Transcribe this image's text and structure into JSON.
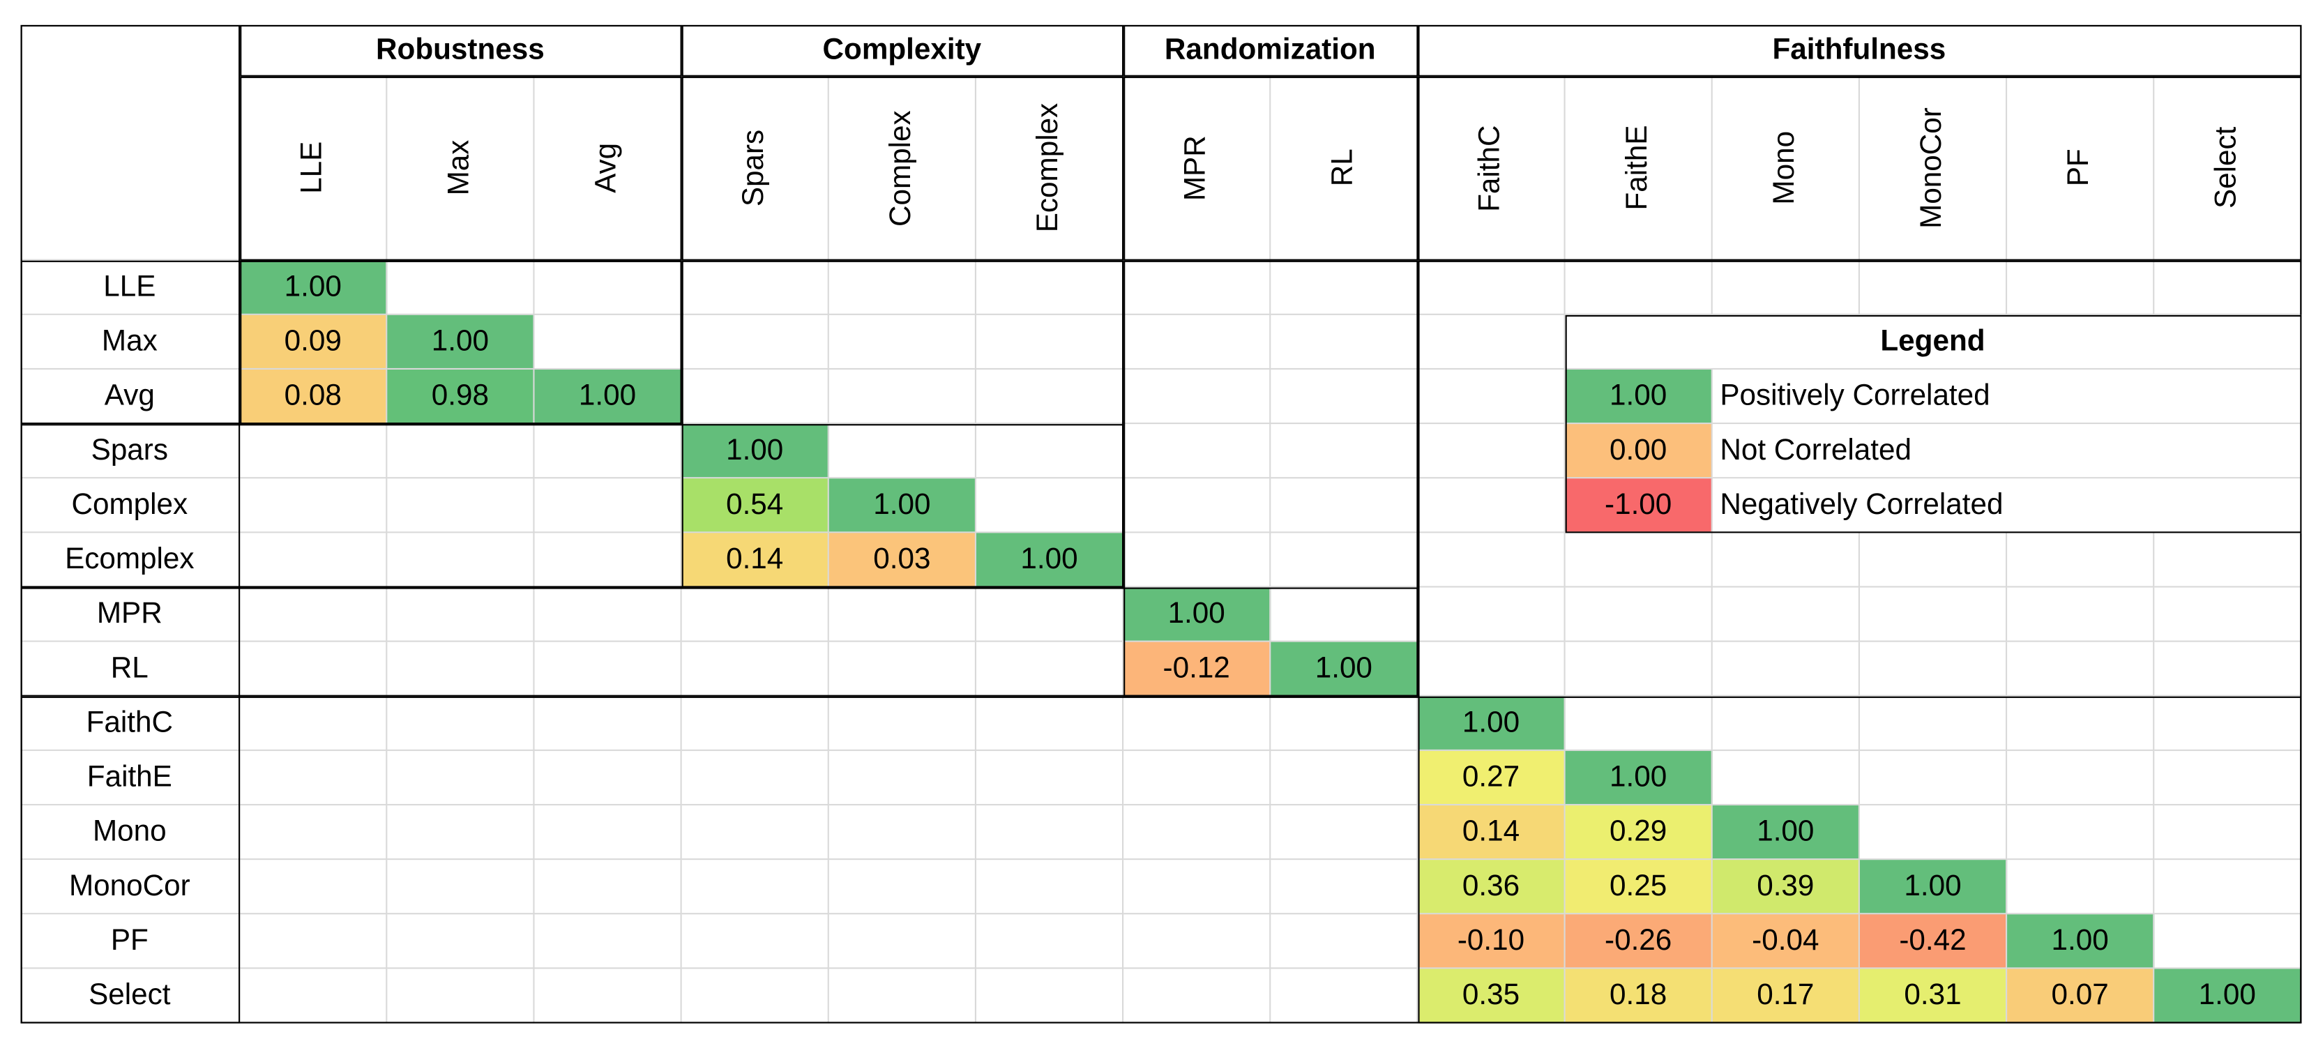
{
  "table": {
    "groups": [
      {
        "name": "Robustness",
        "columns": [
          "LLE",
          "Max",
          "Avg"
        ],
        "rows": [
          [
            "1.00"
          ],
          [
            "0.09",
            "1.00"
          ],
          [
            "0.08",
            "0.98",
            "1.00"
          ]
        ]
      },
      {
        "name": "Complexity",
        "columns": [
          "Spars",
          "Complex",
          "Ecomplex"
        ],
        "rows": [
          [
            "1.00"
          ],
          [
            "0.54",
            "1.00"
          ],
          [
            "0.14",
            "0.03",
            "1.00"
          ]
        ]
      },
      {
        "name": "Randomization",
        "columns": [
          "MPR",
          "RL"
        ],
        "rows": [
          [
            "1.00"
          ],
          [
            "-0.12",
            "1.00"
          ]
        ]
      },
      {
        "name": "Faithfulness",
        "columns": [
          "FaithC",
          "FaithE",
          "Mono",
          "MonoCor",
          "PF",
          "Select"
        ],
        "rows": [
          [
            "1.00"
          ],
          [
            "0.27",
            "1.00"
          ],
          [
            "0.14",
            "0.29",
            "1.00"
          ],
          [
            "0.36",
            "0.25",
            "0.39",
            "1.00"
          ],
          [
            "-0.10",
            "-0.26",
            "-0.04",
            "-0.42",
            "1.00"
          ],
          [
            "0.35",
            "0.18",
            "0.17",
            "0.31",
            "0.07",
            "1.00"
          ]
        ]
      }
    ],
    "legend": {
      "title": "Legend",
      "entries": [
        {
          "value": "1.00",
          "label": "Positively Correlated",
          "color": "#63be7b"
        },
        {
          "value": "0.00",
          "label": "Not Correlated",
          "color": "#fcbf7b"
        },
        {
          "value": "-1.00",
          "label": "Negatively Correlated",
          "color": "#f8696b"
        }
      ]
    }
  }
}
